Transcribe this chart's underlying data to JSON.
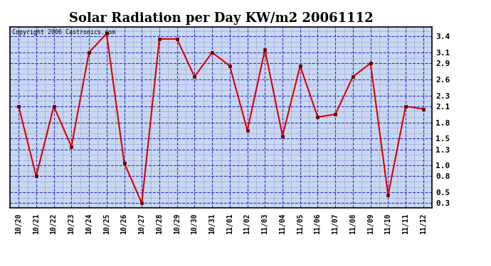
{
  "title": "Solar Radiation per Day KW/m2 20061112",
  "copyright_text": "Copyright 2006 Castronics.com",
  "x_labels": [
    "10/20",
    "10/21",
    "10/22",
    "10/23",
    "10/24",
    "10/25",
    "10/26",
    "10/27",
    "10/28",
    "10/29",
    "10/30",
    "10/31",
    "11/01",
    "11/02",
    "11/03",
    "11/04",
    "11/05",
    "11/06",
    "11/07",
    "11/08",
    "11/09",
    "11/10",
    "11/11",
    "11/12"
  ],
  "y_values": [
    2.1,
    0.8,
    2.1,
    1.35,
    3.1,
    3.45,
    1.05,
    0.3,
    3.35,
    3.35,
    2.65,
    3.1,
    2.85,
    1.65,
    3.15,
    1.55,
    2.85,
    1.9,
    1.95,
    2.65,
    2.9,
    0.45,
    2.1,
    2.05
  ],
  "line_color": "#dd0000",
  "marker_color": "#660000",
  "bg_color": "#c8d8f0",
  "grid_color_major": "#3333cc",
  "grid_color_minor": "#7777dd",
  "title_fontsize": 13,
  "ylim_min": 0.22,
  "ylim_max": 3.58,
  "yticks": [
    0.3,
    0.5,
    0.8,
    1.0,
    1.3,
    1.5,
    1.8,
    2.1,
    2.3,
    2.6,
    2.9,
    3.1,
    3.4
  ],
  "ytick_labels": [
    "0.3",
    "0.5",
    "0.8",
    "1.0",
    "1.3",
    "1.5",
    "1.8",
    "2.1",
    "2.3",
    "2.6",
    "2.9",
    "3.1",
    "3.4"
  ]
}
